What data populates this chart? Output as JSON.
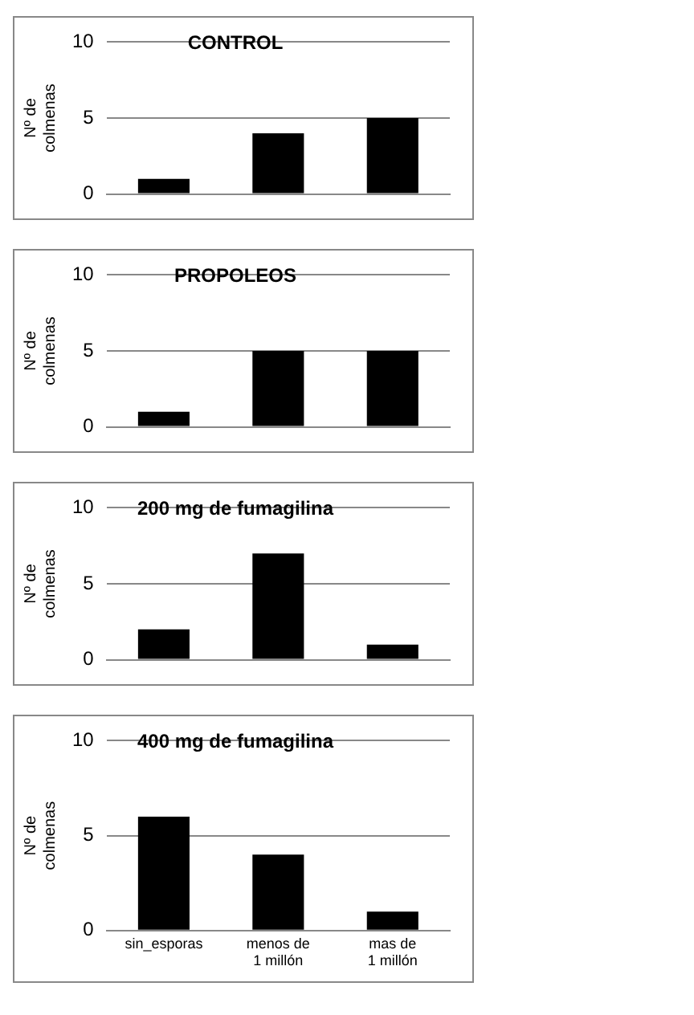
{
  "chart_data": [
    {
      "type": "bar",
      "title": "CONTROL",
      "ylabel": "Nº de colmenas",
      "categories": [
        null,
        null,
        null
      ],
      "values": [
        1,
        4,
        5
      ],
      "color": "#000000",
      "ylim": [
        0,
        10
      ],
      "yticks": [
        0,
        5,
        10
      ],
      "grid": "y",
      "legend": false,
      "tick_labels": "y"
    },
    {
      "type": "bar",
      "title": "PROPOLEOS",
      "ylabel": "Nº de colmenas",
      "categories": [
        null,
        null,
        null
      ],
      "values": [
        1,
        5,
        5
      ],
      "color": "#000000",
      "ylim": [
        0,
        10
      ],
      "yticks": [
        0,
        5,
        10
      ],
      "grid": "y",
      "legend": false,
      "tick_labels": "y"
    },
    {
      "type": "bar",
      "title": "200 mg de fumagilina",
      "ylabel": "Nº de colmenas",
      "categories": [
        null,
        null,
        null
      ],
      "values": [
        2,
        7,
        1
      ],
      "color": "#000000",
      "ylim": [
        0,
        10
      ],
      "yticks": [
        0,
        5,
        10
      ],
      "grid": "y",
      "legend": false,
      "tick_labels": "y"
    },
    {
      "type": "bar",
      "title": "400 mg de fumagilina",
      "ylabel": "Nº de colmenas",
      "categories": [
        "sin_esporas",
        "menos de 1 millón",
        "mas de 1 millón"
      ],
      "values": [
        6,
        4,
        1
      ],
      "color": "#000000",
      "ylim": [
        0,
        10
      ],
      "yticks": [
        0,
        5,
        10
      ],
      "grid": "y",
      "legend": false
    }
  ]
}
